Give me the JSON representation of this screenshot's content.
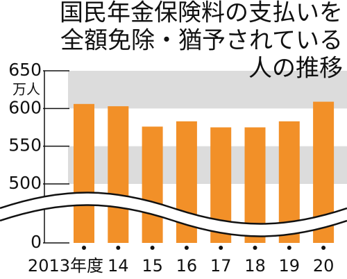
{
  "chart_data": {
    "type": "bar",
    "title_lines": [
      "国民年金保険料の支払いを",
      "全額免除・猶予されている",
      "人の推移"
    ],
    "y_unit": "万人",
    "categories": [
      "2013年度",
      "14",
      "15",
      "16",
      "17",
      "18",
      "19",
      "20"
    ],
    "values": [
      606,
      603,
      576,
      583,
      575,
      575,
      583,
      609
    ],
    "color": "#f29028",
    "ylim": [
      0,
      650
    ],
    "yticks": [
      0,
      500,
      550,
      600,
      650
    ],
    "axis_break": true,
    "grid_bands": true
  }
}
